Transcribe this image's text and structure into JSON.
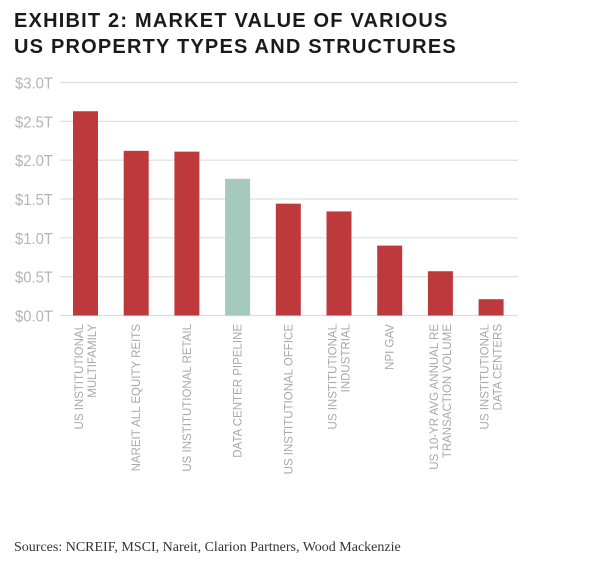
{
  "title_lines": [
    "EXHIBIT 2: MARKET VALUE OF VARIOUS",
    "US PROPERTY TYPES AND STRUCTURES"
  ],
  "source": "Sources: NCREIF, MSCI, Nareit, Clarion Partners, Wood Mackenzie",
  "chart_data": {
    "type": "bar",
    "title": "EXHIBIT 2: MARKET VALUE OF VARIOUS US PROPERTY TYPES AND STRUCTURES",
    "categories": [
      [
        "US INSTITUTIONAL",
        "MULTIFAMILY"
      ],
      [
        "NAREIT ALL EQUITY REITS"
      ],
      [
        "US INSTITUTIONAL RETAIL"
      ],
      [
        "DATA CENTER PIPELINE"
      ],
      [
        "US INSTITUTIONAL OFFICE"
      ],
      [
        "US INSTITUTIONAL",
        "INDUSTRIAL"
      ],
      [
        "NPI GAV"
      ],
      [
        "US 10-YR AVG ANNUAL RE",
        "TRANSACTION VOLUME"
      ],
      [
        "US INSTITUTIONAL",
        "DATA CENTERS"
      ]
    ],
    "values": [
      2.63,
      2.12,
      2.11,
      1.76,
      1.44,
      1.34,
      0.9,
      0.57,
      0.21
    ],
    "unit": "trillion USD",
    "ylim": [
      0,
      3.0
    ],
    "yticks": [
      0,
      0.5,
      1.0,
      1.5,
      2.0,
      2.5,
      3.0
    ],
    "ytick_labels": [
      "$0.0T",
      "$0.5T",
      "$1.0T",
      "$1.5T",
      "$2.0T",
      "$2.5T",
      "$3.0T"
    ],
    "grid": true,
    "colors": [
      "#bd393b",
      "#bd393b",
      "#bd393b",
      "#a5c9bc",
      "#bd393b",
      "#bd393b",
      "#bd393b",
      "#bd393b",
      "#bd393b"
    ],
    "gridline_color": "#dddddd",
    "tick_color": "#b5b5b5",
    "label_color": "#a8a8a8"
  }
}
